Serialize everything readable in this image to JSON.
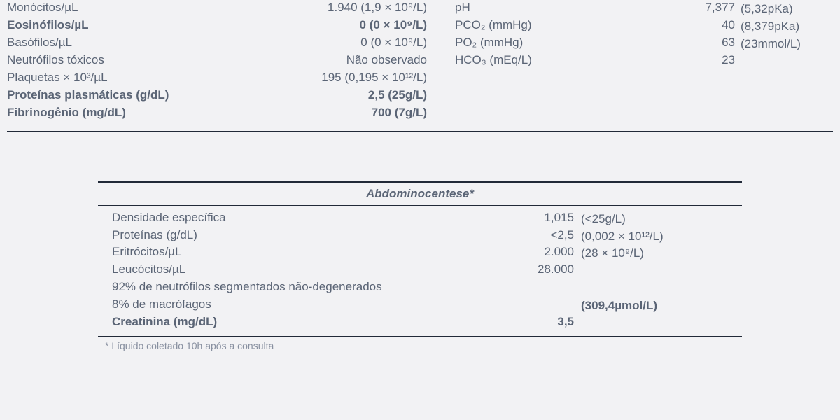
{
  "top": {
    "left": [
      {
        "label": "Monócitos/µL",
        "value": "1.940",
        "unit": "(1,9 × 10⁹/L)",
        "bold": false
      },
      {
        "label": "Eosinófilos/µL",
        "value": "0",
        "unit": "(0 × 10⁹/L)",
        "bold": true
      },
      {
        "label": "Basófilos/µL",
        "value": "0",
        "unit": "(0 × 10⁹/L)",
        "bold": false
      },
      {
        "label": "Neutrófilos tóxicos",
        "value": "Não observado",
        "unit": "",
        "bold": false
      },
      {
        "label": "Plaquetas × 10³/µL",
        "value": "195",
        "unit": "(0,195 × 10¹²/L)",
        "bold": false
      },
      {
        "label": "Proteínas plasmáticas (g/dL)",
        "value": "2,5",
        "unit": "(25g/L)",
        "bold": true
      },
      {
        "label": "Fibrinogênio (mg/dL)",
        "value": "700",
        "unit": "(7g/L)",
        "bold": true
      }
    ],
    "right": [
      {
        "label": "pH",
        "value": "7,377",
        "unit": ""
      },
      {
        "label": "PCO₂ (mmHg)",
        "value": "40",
        "unit": "(5,32pKa)"
      },
      {
        "label": "PO₂ (mmHg)",
        "value": "63",
        "unit": "(8,379pKa)"
      },
      {
        "label": "HCO₃ (mEq/L)",
        "value": "23",
        "unit": "(23mmol/L)"
      }
    ]
  },
  "abdo": {
    "title": "Abdominocentese*",
    "rows": [
      {
        "label": "Densidade específica",
        "value": "1,015",
        "unit": "",
        "bold": false
      },
      {
        "label": "Proteínas (g/dL)",
        "value": "<2,5",
        "unit": "(<25g/L)",
        "bold": false
      },
      {
        "label": "Eritrócitos/µL",
        "value": "2.000",
        "unit": "(0,002 × 10¹²/L)",
        "bold": false
      },
      {
        "label": "Leucócitos/µL",
        "value": "28.000",
        "unit": "(28 × 10⁹/L)",
        "bold": false
      },
      {
        "label": "92% de neutrófilos segmentados não-degenerados",
        "value": "",
        "unit": "",
        "bold": false
      },
      {
        "label": "8% de macrófagos",
        "value": "",
        "unit": "",
        "bold": false
      },
      {
        "label": "Creatinina (mg/dL)",
        "value": "3,5",
        "unit": "(309,4µmol/L)",
        "bold": true
      }
    ],
    "footnote": "* Líquido coletado 10h após a consulta"
  }
}
